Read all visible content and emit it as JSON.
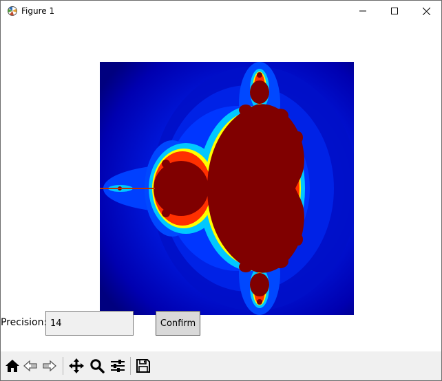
{
  "window": {
    "title": "Figure 1",
    "controls": [
      "minimize",
      "maximize",
      "close"
    ]
  },
  "plot": {
    "kind": "fractal image",
    "colormap": "jet",
    "set_color": "#800000",
    "background_color": "#00007f"
  },
  "controls": {
    "precision_label": "Precision:",
    "precision_value": "14",
    "confirm_label": "Confirm"
  },
  "toolbar": {
    "tools": [
      "home-icon",
      "back-arrow-icon",
      "forward-arrow-icon",
      "pan-icon",
      "zoom-icon",
      "configure-subplots-icon",
      "save-icon"
    ]
  }
}
